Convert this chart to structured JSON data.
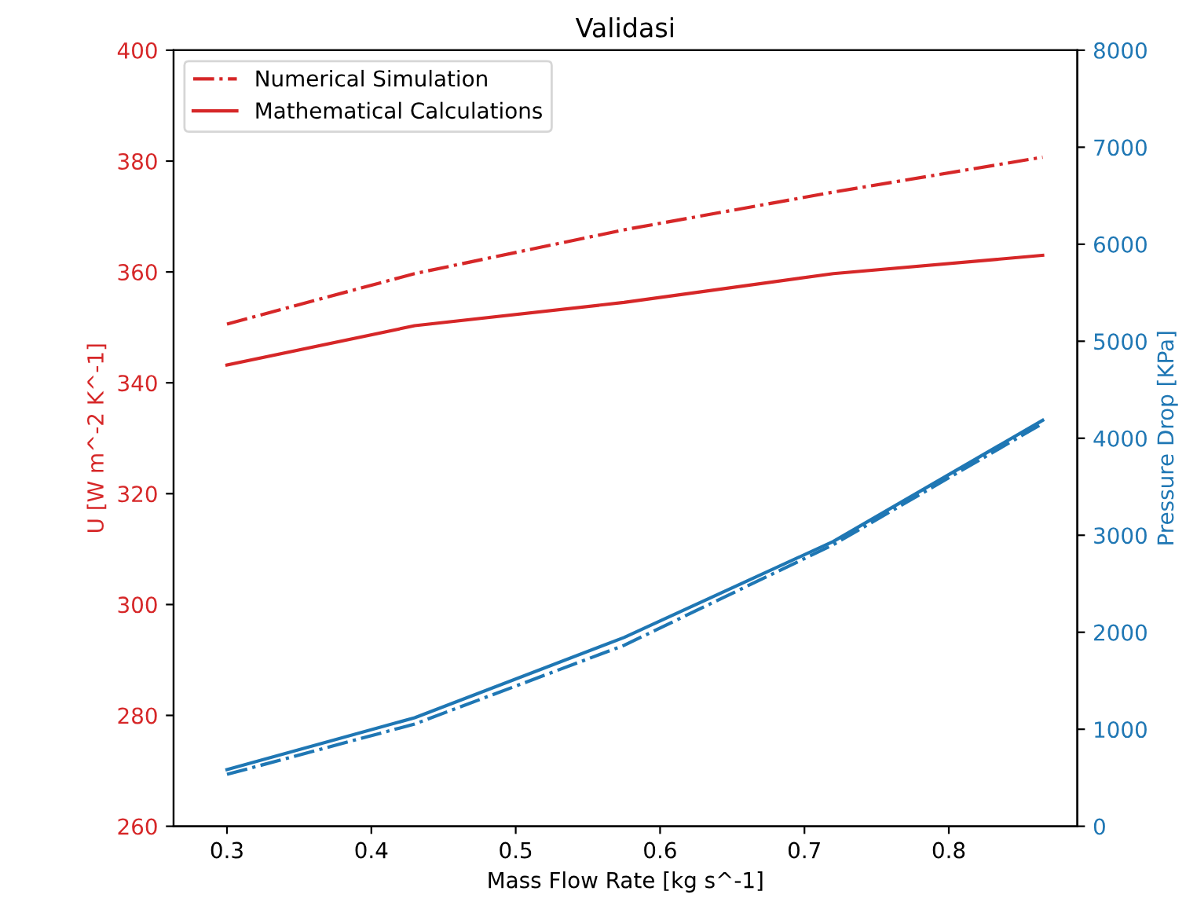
{
  "chart_data": {
    "type": "line",
    "title": "Validasi",
    "xlabel": "Mass Flow Rate [kg s^-1]",
    "ylabel": "U [W m^-2 K^-1]",
    "y2label": "Pressure Drop [KPa]",
    "x": [
      0.3,
      0.43,
      0.575,
      0.72,
      0.865
    ],
    "series": [
      {
        "name": "Numerical Simulation",
        "color": "#d62728",
        "line_style": "dashdot",
        "values": [
          350.6,
          359.7,
          367.6,
          374.4,
          380.7
        ]
      },
      {
        "name": "Mathematical Calculations",
        "color": "#d62728",
        "line_style": "solid",
        "values": [
          343.2,
          350.3,
          354.5,
          359.7,
          363.0
        ]
      },
      {
        "color": "#1f77b4",
        "line_style": "solid",
        "axis": "y2",
        "values": [
          584,
          1119,
          1946,
          2936,
          4185
        ]
      },
      {
        "color": "#1f77b4",
        "line_style": "dashdot",
        "axis": "y2",
        "values": [
          535,
          1054,
          1865,
          2903,
          4152
        ]
      }
    ],
    "xlim": [
      0.263,
      0.889
    ],
    "xticks": [
      0.3,
      0.4,
      0.5,
      0.6,
      0.7,
      0.8
    ],
    "ylim": [
      260,
      400
    ],
    "yticks": [
      260,
      280,
      300,
      320,
      340,
      360,
      380,
      400
    ],
    "y2lim": [
      0,
      8000
    ],
    "y2ticks": [
      0,
      1000,
      2000,
      3000,
      4000,
      5000,
      6000,
      7000,
      8000
    ],
    "legend": "top left",
    "grid": false
  }
}
